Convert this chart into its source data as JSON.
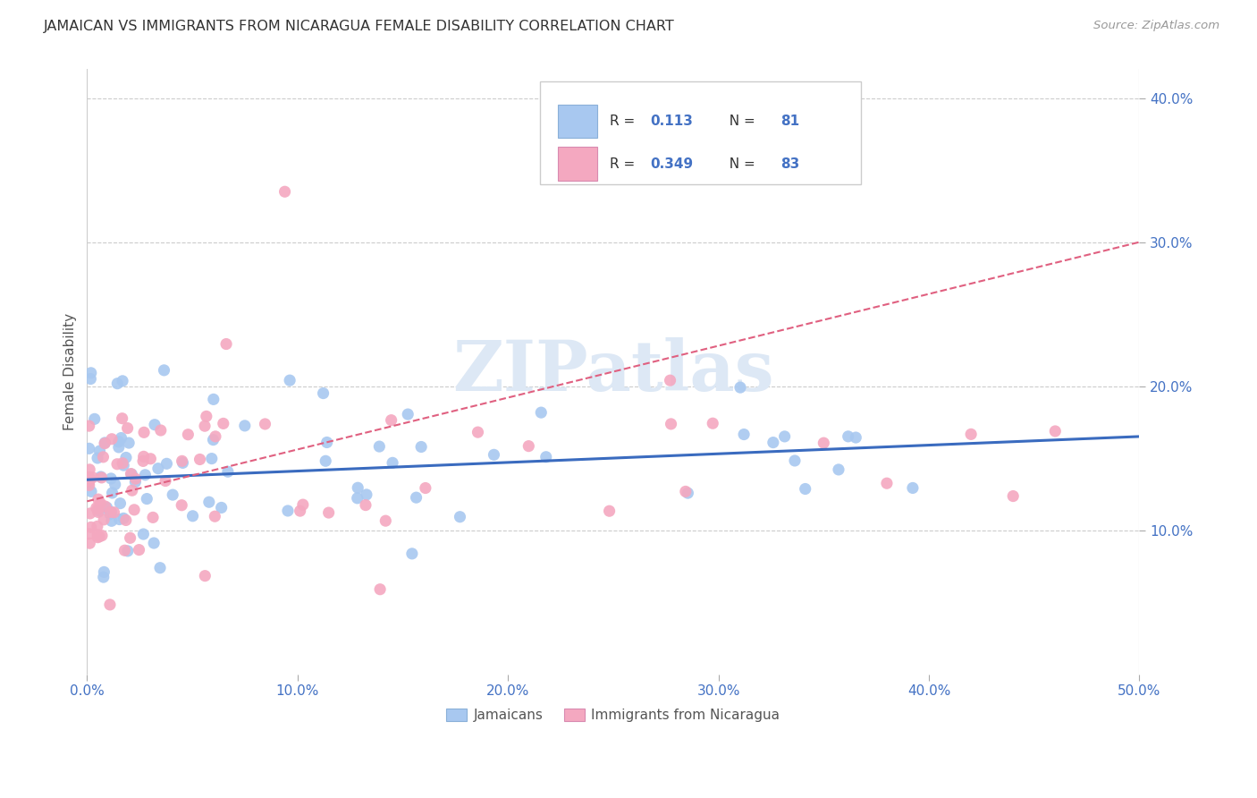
{
  "title": "JAMAICAN VS IMMIGRANTS FROM NICARAGUA FEMALE DISABILITY CORRELATION CHART",
  "source": "Source: ZipAtlas.com",
  "ylabel_label": "Female Disability",
  "watermark": "ZIPatlas",
  "xlim": [
    0.0,
    0.5
  ],
  "ylim": [
    0.0,
    0.42
  ],
  "xtick_vals": [
    0.0,
    0.1,
    0.2,
    0.3,
    0.4,
    0.5
  ],
  "xtick_labels": [
    "0.0%",
    "10.0%",
    "20.0%",
    "30.0%",
    "40.0%",
    "50.0%"
  ],
  "ytick_vals": [
    0.1,
    0.2,
    0.3,
    0.4
  ],
  "ytick_labels": [
    "10.0%",
    "20.0%",
    "30.0%",
    "40.0%"
  ],
  "jamaican_color": "#a8c8f0",
  "nicaragua_color": "#f4a8c0",
  "line_jamaican_color": "#3a6bbf",
  "line_nicaragua_color": "#e06080",
  "background_color": "#ffffff",
  "tick_color": "#4472c4",
  "title_color": "#333333",
  "source_color": "#999999",
  "ylabel_color": "#555555",
  "watermark_color": "#dde8f5",
  "legend_edge_color": "#cccccc"
}
